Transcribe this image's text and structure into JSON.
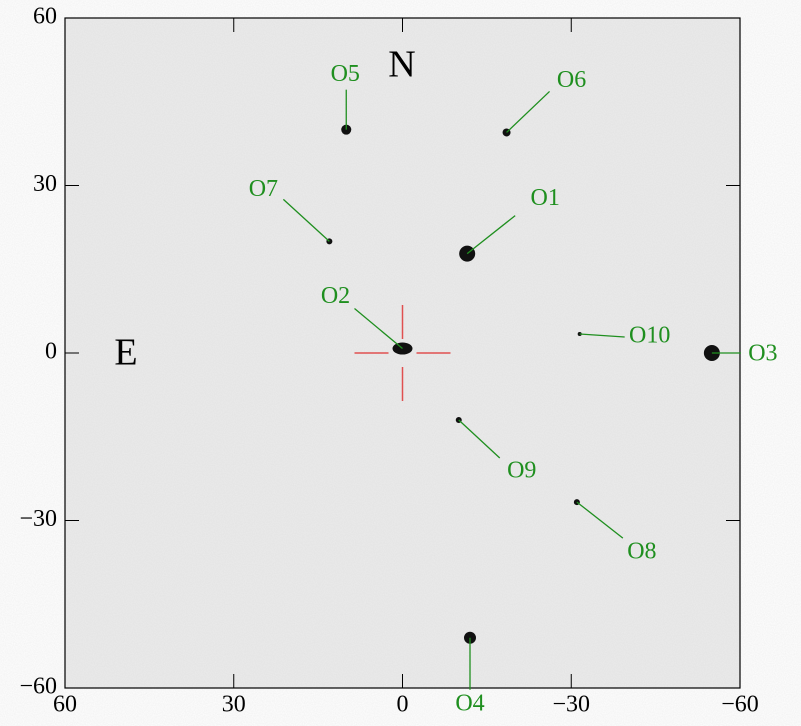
{
  "chart_data": {
    "type": "scatter",
    "annotations": {
      "north": "N",
      "east": "E"
    },
    "series": [
      {
        "name": null,
        "color": "#1f8f1f",
        "labels": [
          "O1",
          "O2",
          "O3",
          "O4",
          "O5",
          "O6",
          "O7",
          "O8",
          "O9",
          "O10"
        ],
        "x": [
          -11.5,
          0,
          -55,
          -12,
          10,
          -18.5,
          13,
          -31,
          -10,
          -31.5
        ],
        "values": [
          17.8,
          0.8,
          0,
          -51,
          40,
          39.5,
          20,
          -26.7,
          -12,
          3.4
        ]
      }
    ],
    "xlim": [
      60,
      -60
    ],
    "ylim": [
      -60,
      60
    ],
    "xticks": [
      60,
      30,
      0,
      {
        "value": -30,
        "label": "−30"
      },
      {
        "value": -60,
        "label": "−60"
      }
    ],
    "yticks": [
      {
        "value": -60,
        "label": "−60"
      },
      {
        "value": -30,
        "label": "−30"
      },
      0,
      30,
      60
    ],
    "crosshair_color": "#e05050"
  }
}
